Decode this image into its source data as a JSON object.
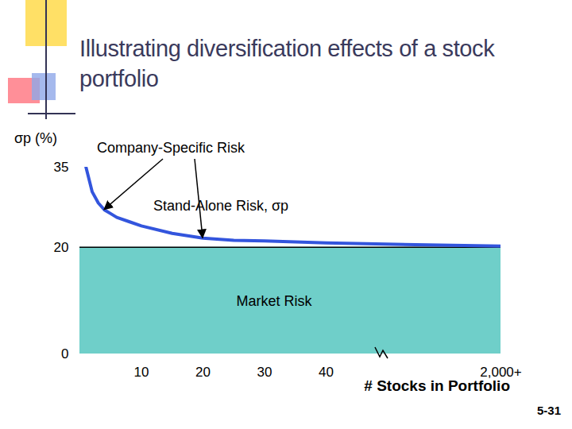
{
  "chart_data": {
    "type": "line",
    "title": "Illustrating diversification effects of a stock portfolio",
    "ylabel": "σp (%)",
    "xlabel": "# Stocks in Portfolio",
    "x": [
      0,
      1,
      2,
      3,
      4,
      5,
      6,
      8,
      10,
      15,
      20,
      25,
      30,
      40,
      2000
    ],
    "xlim": [
      0,
      2000
    ],
    "xticks": [
      10,
      20,
      30,
      40,
      {
        "value": 2000,
        "label": "2,000+"
      }
    ],
    "ylim": [
      0,
      35
    ],
    "yticks": [
      0,
      20,
      35
    ],
    "grid": false,
    "series": [
      {
        "name": "Market Risk",
        "type": "area",
        "color": "#6fcfc9",
        "values": [
          20,
          20,
          20,
          20,
          20,
          20,
          20,
          20,
          20,
          20,
          20,
          20,
          20,
          20,
          20
        ]
      },
      {
        "name": "Stand-Alone Risk, σp",
        "type": "line",
        "color": "#3355dd",
        "values": [
          null,
          35,
          30.4,
          28.3,
          27,
          26.3,
          25.6,
          24.8,
          24,
          22.6,
          21.7,
          21.3,
          21.2,
          20.8,
          20.2
        ]
      }
    ],
    "annotations": [
      "Company-Specific Risk"
    ],
    "caption": "5-31"
  }
}
